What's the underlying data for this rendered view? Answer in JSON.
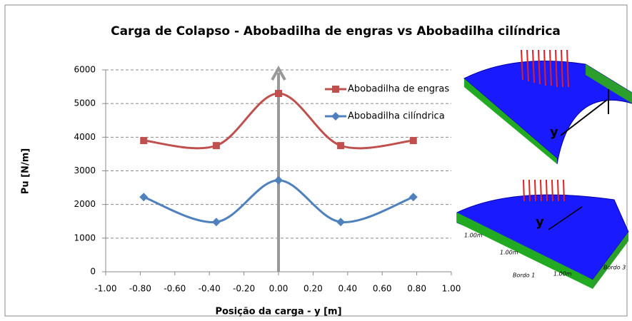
{
  "chart_data": {
    "type": "line",
    "title": "Carga de Colapso - Abobadilha de engras vs Abobadilha cilíndrica",
    "xlabel": "Posição da carga - y [m]",
    "ylabel": "Pu [N/m]",
    "xlim": [
      -1,
      1
    ],
    "ylim": [
      0,
      6000
    ],
    "xticks": [
      {
        "value": -1,
        "label": "-1.00"
      },
      {
        "value": -0.8,
        "label": "-0.80"
      },
      {
        "value": -0.6,
        "label": "-0.60"
      },
      {
        "value": -0.4,
        "label": "-0.40"
      },
      {
        "value": -0.2,
        "label": "-0.20"
      },
      {
        "value": 0,
        "label": "0.00"
      },
      {
        "value": 0.2,
        "label": "0.20"
      },
      {
        "value": 0.4,
        "label": "0.40"
      },
      {
        "value": 0.6,
        "label": "0.60"
      },
      {
        "value": 0.8,
        "label": "0.80"
      },
      {
        "value": 1,
        "label": "1.00"
      }
    ],
    "yticks": [
      0,
      1000,
      2000,
      3000,
      4000,
      5000,
      6000
    ],
    "grid": true,
    "legend": "upper right",
    "series": [
      {
        "name": "Abobadilha de engras",
        "color": "#c0504d",
        "marker": "square",
        "x": [
          -0.78,
          -0.36,
          0,
          0.36,
          0.78
        ],
        "values": [
          3900,
          3750,
          5300,
          3750,
          3900
        ]
      },
      {
        "name": "Abobadilha cilíndrica",
        "color": "#4f81bd",
        "marker": "diamond",
        "x": [
          -0.78,
          -0.36,
          0,
          0.36,
          0.78
        ],
        "values": [
          2220,
          1480,
          2720,
          1480,
          2220
        ]
      }
    ],
    "annotations": [
      "y",
      "y",
      "1.00m",
      "1.00m",
      "1.00m",
      "Bordo 1",
      "Bordo 3"
    ]
  }
}
